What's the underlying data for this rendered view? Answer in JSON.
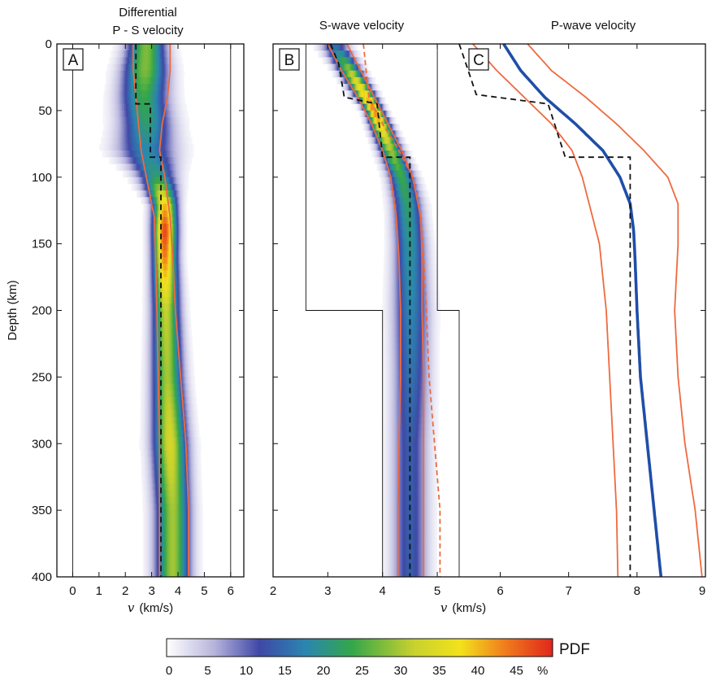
{
  "chart_data": {
    "type": "heatmap",
    "ylabel": "Depth (km)",
    "ylim": [
      400,
      0
    ],
    "yticks": [
      0,
      50,
      100,
      150,
      200,
      250,
      300,
      350,
      400
    ],
    "panels": [
      {
        "letter": "A",
        "title_lines": [
          "Differential",
          "P - S velocity"
        ],
        "xlabel_symbol": "v",
        "xlabel_unit": "(km/s)",
        "xlim": [
          -0.6,
          6.5
        ],
        "xticks": [
          0,
          1,
          2,
          3,
          4,
          5,
          6
        ],
        "boundary_lines_x": [
          0,
          6
        ],
        "pdf_ridge": {
          "depth": [
            0,
            20,
            40,
            60,
            80,
            100,
            120,
            140,
            160,
            200,
            250,
            300,
            350,
            400
          ],
          "center": [
            2.8,
            2.75,
            2.7,
            2.8,
            2.8,
            3.2,
            3.5,
            3.5,
            3.5,
            3.55,
            3.6,
            3.7,
            3.8,
            3.8
          ],
          "halfwidth": [
            0.55,
            0.65,
            0.7,
            0.75,
            0.85,
            0.55,
            0.35,
            0.35,
            0.35,
            0.4,
            0.45,
            0.5,
            0.5,
            0.5
          ],
          "peak_pdf": [
            28,
            28,
            24,
            22,
            18,
            22,
            40,
            48,
            44,
            32,
            30,
            34,
            30,
            30
          ]
        },
        "bound_curves": [
          {
            "depth": [
              0,
              20,
              40,
              60,
              80,
              100,
              130,
              160,
              200,
              250,
              300,
              350,
              400
            ],
            "v": [
              2.3,
              2.3,
              2.4,
              2.5,
              2.6,
              2.8,
              3.1,
              3.15,
              3.2,
              3.25,
              3.3,
              3.3,
              3.3
            ]
          },
          {
            "depth": [
              0,
              20,
              40,
              60,
              80,
              100,
              130,
              160,
              200,
              250,
              300,
              350,
              400
            ],
            "v": [
              3.7,
              3.7,
              3.6,
              3.4,
              3.3,
              3.5,
              3.7,
              3.8,
              3.9,
              4.1,
              4.3,
              4.4,
              4.4
            ]
          }
        ],
        "reference_model": {
          "depth": [
            0,
            10,
            10,
            45,
            45,
            85,
            85,
            400
          ],
          "v": [
            2.4,
            2.4,
            2.4,
            2.4,
            2.95,
            2.95,
            3.35,
            3.35
          ],
          "style": "dashed"
        }
      },
      {
        "letter": "B",
        "title_lines": [
          "S-wave velocity"
        ],
        "xlim": [
          2,
          5.4
        ],
        "xticks": [
          2,
          3,
          4,
          5
        ],
        "prior_bounds": [
          {
            "depth": [
              0,
              200,
              200,
              400
            ],
            "v": [
              2.6,
              2.6,
              4.0,
              4.0
            ]
          },
          {
            "depth": [
              0,
              200,
              200,
              400
            ],
            "v": [
              5.0,
              5.0,
              5.4,
              5.4
            ]
          }
        ],
        "pdf_ridge": {
          "depth": [
            0,
            10,
            20,
            30,
            40,
            50,
            60,
            70,
            80,
            90,
            100,
            120,
            150,
            200,
            250,
            300,
            350,
            400
          ],
          "center": [
            3.1,
            3.25,
            3.4,
            3.55,
            3.7,
            3.85,
            3.95,
            4.05,
            4.15,
            4.25,
            4.35,
            4.45,
            4.5,
            4.52,
            4.52,
            4.5,
            4.5,
            4.5
          ],
          "halfwidth": [
            0.2,
            0.18,
            0.16,
            0.15,
            0.14,
            0.12,
            0.14,
            0.15,
            0.16,
            0.17,
            0.18,
            0.2,
            0.22,
            0.25,
            0.25,
            0.25,
            0.25,
            0.25
          ],
          "peak_pdf": [
            14,
            22,
            30,
            36,
            40,
            44,
            40,
            34,
            30,
            26,
            24,
            22,
            20,
            18,
            16,
            14,
            14,
            14
          ]
        },
        "bound_curves": [
          {
            "depth": [
              0,
              20,
              40,
              60,
              80,
              100,
              130,
              160,
              200,
              250,
              300,
              350,
              400
            ],
            "v": [
              3.0,
              3.25,
              3.55,
              3.8,
              4.0,
              4.15,
              4.25,
              4.3,
              4.33,
              4.33,
              4.3,
              4.28,
              4.28
            ],
            "style": "solid"
          },
          {
            "depth": [
              0,
              20,
              40,
              60,
              80,
              100,
              130,
              160,
              200,
              250,
              300,
              350,
              400
            ],
            "v": [
              3.35,
              3.6,
              3.85,
              4.1,
              4.35,
              4.55,
              4.7,
              4.72,
              4.72,
              4.75,
              4.75,
              4.75,
              4.75
            ],
            "style": "solid"
          },
          {
            "depth": [
              0,
              20,
              40,
              60,
              80,
              100,
              130,
              160,
              200,
              250,
              300,
              350,
              400
            ],
            "v": [
              3.65,
              3.7,
              3.75,
              4.0,
              4.3,
              4.55,
              4.7,
              4.75,
              4.8,
              4.85,
              4.95,
              5.05,
              5.05
            ],
            "style": "dashed"
          }
        ],
        "reference_model": {
          "depth": [
            0,
            15,
            40,
            45,
            85,
            85,
            400
          ],
          "v": [
            3.05,
            3.2,
            3.3,
            3.9,
            4.0,
            4.5,
            4.5
          ],
          "style": "dashed"
        }
      },
      {
        "letter": "C",
        "title_lines": [
          "P-wave velocity"
        ],
        "xlim": [
          5.4,
          9
        ],
        "xticks": [
          6,
          7,
          8,
          9
        ],
        "mean_curve": {
          "depth": [
            0,
            20,
            40,
            60,
            80,
            100,
            120,
            140,
            160,
            200,
            250,
            300,
            350,
            400
          ],
          "v": [
            6.05,
            6.3,
            6.65,
            7.1,
            7.5,
            7.75,
            7.9,
            7.95,
            7.97,
            8.0,
            8.05,
            8.15,
            8.25,
            8.35
          ],
          "color": "#1f4ea8"
        },
        "bound_curves": [
          {
            "depth": [
              0,
              20,
              40,
              60,
              80,
              100,
              120,
              150,
              200,
              250,
              300,
              350,
              400
            ],
            "v": [
              5.6,
              5.95,
              6.35,
              6.75,
              7.05,
              7.2,
              7.3,
              7.45,
              7.55,
              7.6,
              7.65,
              7.7,
              7.72
            ]
          },
          {
            "depth": [
              0,
              20,
              40,
              60,
              80,
              100,
              120,
              150,
              200,
              250,
              300,
              350,
              400
            ],
            "v": [
              6.4,
              6.75,
              7.25,
              7.7,
              8.1,
              8.45,
              8.6,
              8.6,
              8.55,
              8.6,
              8.7,
              8.85,
              8.95
            ]
          }
        ],
        "reference_model": {
          "depth": [
            0,
            15,
            38,
            45,
            85,
            85,
            400
          ],
          "v": [
            5.4,
            5.5,
            5.65,
            6.7,
            6.95,
            7.9,
            7.9
          ],
          "style": "dashed"
        }
      }
    ],
    "colorbar": {
      "title": "PDF",
      "unit": "%",
      "ticks": [
        0,
        5,
        10,
        15,
        20,
        25,
        30,
        35,
        40,
        45
      ],
      "range": [
        0,
        50
      ],
      "stops": [
        {
          "v": 0,
          "color": "#ffffff"
        },
        {
          "v": 6,
          "color": "#b9b6dd"
        },
        {
          "v": 12,
          "color": "#3f48a6"
        },
        {
          "v": 18,
          "color": "#2a86b0"
        },
        {
          "v": 24,
          "color": "#34a64a"
        },
        {
          "v": 32,
          "color": "#c8d12e"
        },
        {
          "v": 38,
          "color": "#f2e21c"
        },
        {
          "v": 44,
          "color": "#f07a1c"
        },
        {
          "v": 50,
          "color": "#e0261c"
        }
      ]
    },
    "bound_color": "#ee6a3e",
    "reference_color": "#111111"
  }
}
